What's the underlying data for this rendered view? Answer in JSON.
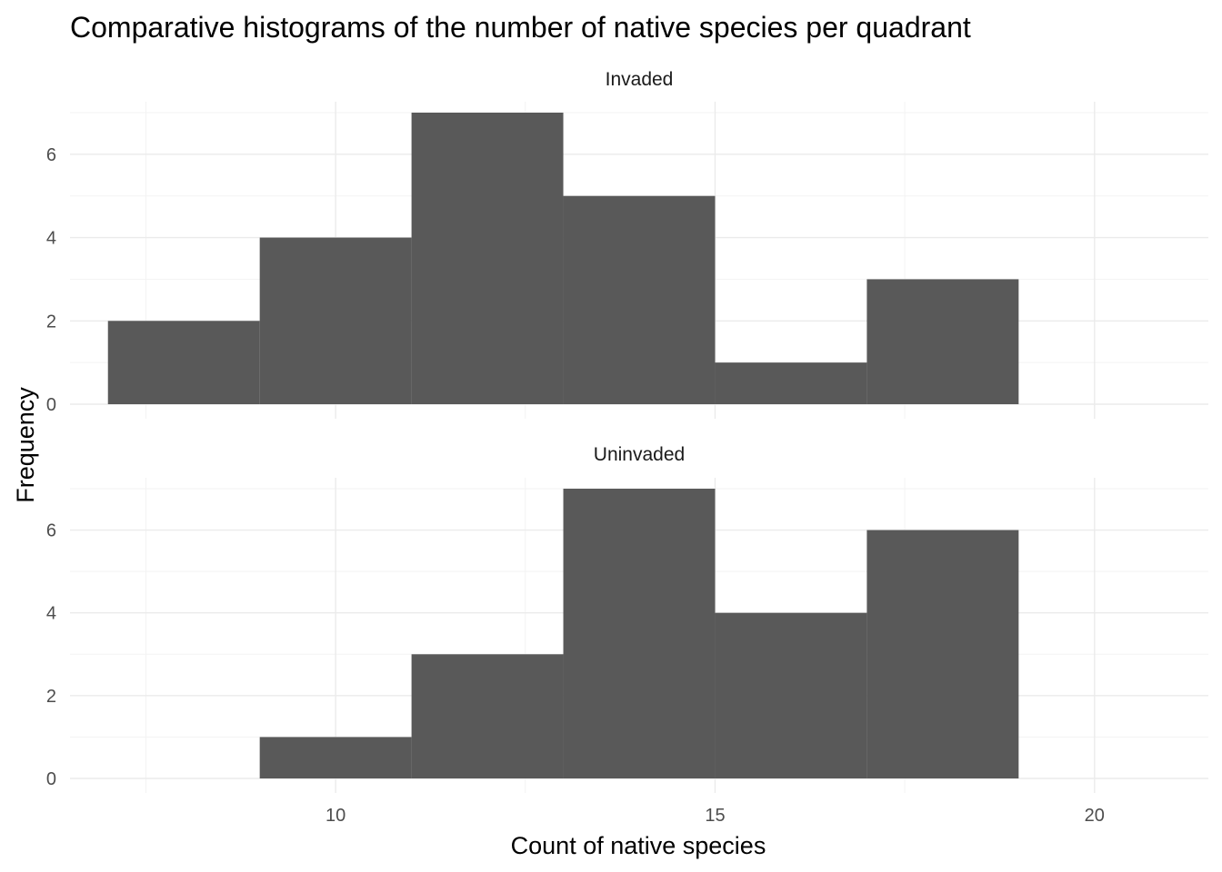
{
  "chart_data": {
    "type": "bar",
    "subtype": "histogram-facets",
    "title": "Comparative histograms of the number of native species per quadrant",
    "xlabel": "Count of native species",
    "ylabel": "Frequency",
    "bin_width": 2,
    "xlim": [
      6.5,
      21.5
    ],
    "ylim": [
      0,
      7
    ],
    "x_ticks": [
      10,
      15,
      20
    ],
    "x_minor_ticks": [
      7.5,
      12.5,
      17.5
    ],
    "y_ticks": [
      0,
      2,
      4,
      6
    ],
    "y_minor_ticks": [
      1,
      3,
      5,
      7
    ],
    "bar_color": "#595959",
    "grid_major_color": "#ebebeb",
    "grid_minor_color": "#f3f3f3",
    "facets": [
      {
        "label": "Invaded",
        "bins": [
          {
            "x0": 7,
            "x1": 9,
            "count": 2
          },
          {
            "x0": 9,
            "x1": 11,
            "count": 4
          },
          {
            "x0": 11,
            "x1": 13,
            "count": 7
          },
          {
            "x0": 13,
            "x1": 15,
            "count": 5
          },
          {
            "x0": 15,
            "x1": 17,
            "count": 1
          },
          {
            "x0": 17,
            "x1": 19,
            "count": 3
          }
        ]
      },
      {
        "label": "Uninvaded",
        "bins": [
          {
            "x0": 7,
            "x1": 9,
            "count": 0
          },
          {
            "x0": 9,
            "x1": 11,
            "count": 1
          },
          {
            "x0": 11,
            "x1": 13,
            "count": 3
          },
          {
            "x0": 13,
            "x1": 15,
            "count": 7
          },
          {
            "x0": 15,
            "x1": 17,
            "count": 4
          },
          {
            "x0": 17,
            "x1": 19,
            "count": 6
          }
        ]
      }
    ]
  }
}
